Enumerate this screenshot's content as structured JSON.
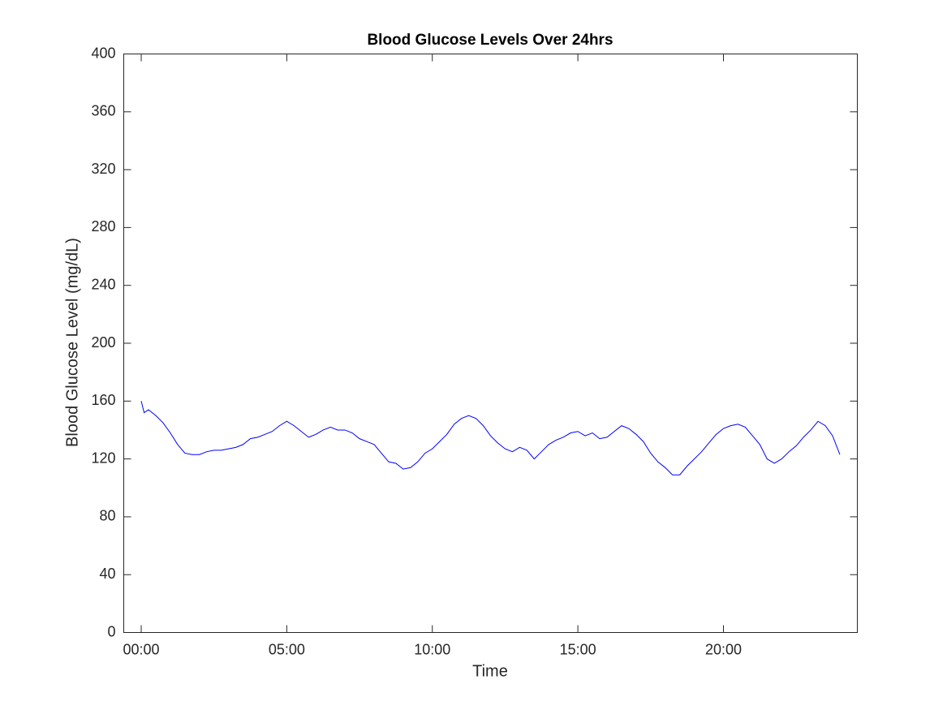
{
  "chart_data": {
    "type": "line",
    "title": "Blood Glucose Levels Over 24hrs",
    "x_label": "Time",
    "y_label": "Blood Glucose Level (mg/dL)",
    "x": [
      0,
      0.1,
      0.25,
      0.5,
      0.75,
      1,
      1.25,
      1.5,
      1.75,
      2,
      2.25,
      2.5,
      2.75,
      3,
      3.25,
      3.5,
      3.75,
      4,
      4.25,
      4.5,
      4.75,
      5,
      5.25,
      5.5,
      5.75,
      6,
      6.25,
      6.5,
      6.75,
      7,
      7.25,
      7.5,
      7.75,
      8,
      8.25,
      8.5,
      8.75,
      9,
      9.25,
      9.5,
      9.75,
      10,
      10.25,
      10.5,
      10.75,
      11,
      11.25,
      11.5,
      11.75,
      12,
      12.25,
      12.5,
      12.75,
      13,
      13.25,
      13.5,
      13.75,
      14,
      14.25,
      14.5,
      14.75,
      15,
      15.25,
      15.5,
      15.75,
      16,
      16.25,
      16.5,
      16.75,
      17,
      17.25,
      17.5,
      17.75,
      18,
      18.25,
      18.5,
      18.75,
      19,
      19.25,
      19.5,
      19.75,
      20,
      20.25,
      20.5,
      20.75,
      21,
      21.25,
      21.5,
      21.75,
      22,
      22.25,
      22.5,
      22.75,
      23,
      23.25,
      23.5,
      23.75,
      24
    ],
    "series": [
      {
        "name": "Blood Glucose",
        "color": "#0000ff",
        "values": [
          160,
          152,
          154,
          150,
          145,
          138,
          130,
          124,
          123,
          123,
          125,
          126,
          126,
          127,
          128,
          130,
          134,
          135,
          137,
          139,
          143,
          146,
          143,
          139,
          135,
          137,
          140,
          142,
          140,
          140,
          138,
          134,
          132,
          130,
          124,
          118,
          117,
          113,
          114,
          118,
          124,
          127,
          132,
          137,
          144,
          148,
          150,
          148,
          143,
          136,
          131,
          127,
          125,
          128,
          126,
          120,
          125,
          130,
          133,
          135,
          138,
          139,
          136,
          138,
          134,
          135,
          139,
          143,
          141,
          137,
          132,
          124,
          118,
          114,
          109,
          109,
          115,
          120,
          125,
          131,
          137,
          141,
          143,
          144,
          142,
          136,
          130,
          120,
          117,
          120,
          125,
          129,
          135,
          140,
          146,
          143,
          136,
          123
        ]
      }
    ],
    "xlim": [
      -0.6,
      24.6
    ],
    "xticks": [
      {
        "value": 0,
        "label": "00:00"
      },
      {
        "value": 5,
        "label": "05:00"
      },
      {
        "value": 10,
        "label": "10:00"
      },
      {
        "value": 15,
        "label": "15:00"
      },
      {
        "value": 20,
        "label": "20:00"
      }
    ],
    "ylim": [
      0,
      400
    ],
    "yticks": [
      0,
      40,
      80,
      120,
      160,
      200,
      240,
      280,
      320,
      360,
      400
    ],
    "grid": false
  }
}
